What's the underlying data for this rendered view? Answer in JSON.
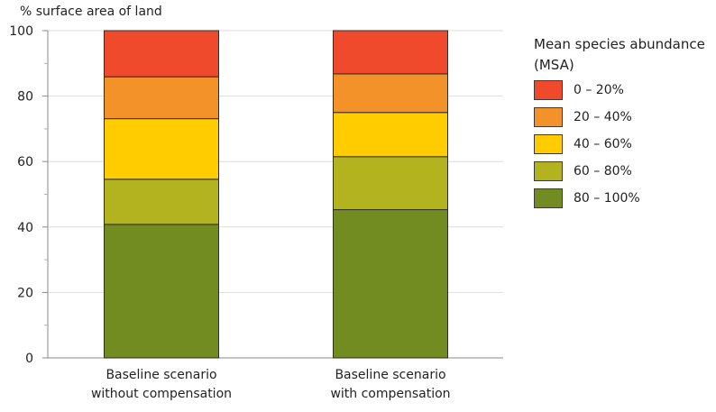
{
  "chart_data": {
    "type": "bar",
    "stacked": true,
    "title": "",
    "ylabel": "% surface area of land",
    "xlabel": "",
    "ylim": [
      0,
      100
    ],
    "y_ticks": [
      0,
      20,
      40,
      60,
      80,
      100
    ],
    "grid": true,
    "legend_title": "Mean species abundance (MSA)",
    "legend_position": "right",
    "categories": [
      "Baseline scenario without compensation",
      "Baseline scenario with compensation"
    ],
    "category_lines": [
      [
        "Baseline scenario",
        "without compensation"
      ],
      [
        "Baseline scenario",
        "with compensation"
      ]
    ],
    "series": [
      {
        "name": "80 – 100%",
        "color": "#738c22",
        "values": [
          40.8,
          45.3
        ]
      },
      {
        "name": "60 – 80%",
        "color": "#b3b31f",
        "values": [
          13.8,
          16.2
        ]
      },
      {
        "name": "40 – 60%",
        "color": "#ffcc00",
        "values": [
          18.5,
          13.5
        ]
      },
      {
        "name": "20 – 40%",
        "color": "#f4922a",
        "values": [
          12.8,
          11.8
        ]
      },
      {
        "name": "0 – 20%",
        "color": "#f04a2c",
        "values": [
          14.1,
          13.2
        ]
      }
    ],
    "legend_order": [
      "0 – 20%",
      "20 – 40%",
      "40 – 60%",
      "60 – 80%",
      "80 – 100%"
    ]
  }
}
